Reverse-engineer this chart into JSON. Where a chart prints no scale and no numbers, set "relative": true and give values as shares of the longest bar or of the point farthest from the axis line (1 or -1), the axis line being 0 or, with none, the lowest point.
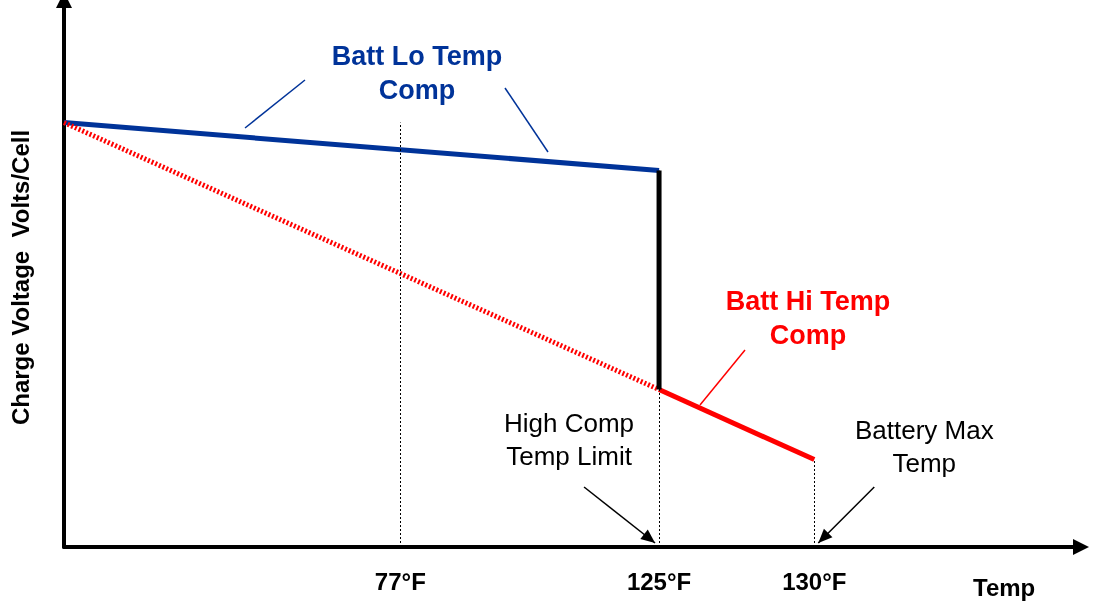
{
  "chart_data": {
    "type": "line",
    "relative": true,
    "xlabel": "Temp",
    "ylabel": "Charge Voltage  Volts/Cell",
    "categories": [
      null,
      null,
      null,
      null,
      null,
      null,
      null,
      null,
      null,
      null,
      null,
      null,
      null,
      "77°F",
      null,
      null,
      null,
      null,
      null,
      null,
      null,
      null,
      null,
      "125°F",
      null,
      null,
      null,
      null,
      null,
      "130°F",
      null,
      null,
      null,
      null,
      null,
      null,
      null,
      null,
      null,
      null
    ],
    "series": [
      {
        "name": "Batt Lo Temp Comp",
        "color": "#003399",
        "line_style": "solid",
        "values": [
          1,
          null,
          null,
          null,
          null,
          null,
          null,
          null,
          null,
          null,
          null,
          null,
          null,
          null,
          null,
          null,
          null,
          null,
          null,
          null,
          null,
          null,
          null,
          0.887,
          null,
          null,
          null,
          null,
          null,
          null,
          null,
          null,
          null,
          null,
          null,
          null,
          null,
          null,
          null,
          null
        ]
      },
      {
        "color": "#ff0000",
        "line_style": "dotted",
        "values": [
          1,
          null,
          null,
          null,
          null,
          null,
          null,
          null,
          null,
          null,
          null,
          null,
          null,
          null,
          null,
          null,
          null,
          null,
          null,
          null,
          null,
          null,
          null,
          0.371,
          null,
          null,
          null,
          null,
          null,
          null,
          null,
          null,
          null,
          null,
          null,
          null,
          null,
          null,
          null,
          null
        ]
      },
      {
        "name": "Batt Hi Temp Comp",
        "color": "#ff0000",
        "line_style": "solid",
        "values": [
          null,
          null,
          null,
          null,
          null,
          null,
          null,
          null,
          null,
          null,
          null,
          null,
          null,
          null,
          null,
          null,
          null,
          null,
          null,
          null,
          null,
          null,
          null,
          0.371,
          null,
          null,
          null,
          null,
          null,
          0.206,
          null,
          null,
          null,
          null,
          null,
          null,
          null,
          null,
          null,
          null
        ]
      },
      {
        "color": "#000000",
        "line_style": "solid",
        "x": [
          "125°F",
          "125°F"
        ],
        "values": [
          0.887,
          0.371
        ]
      }
    ],
    "ref_lines": [
      {
        "axis": "x",
        "value": "77°F",
        "color": "#000000",
        "line_style": "dotted"
      },
      {
        "axis": "x",
        "value": "125°F",
        "color": "#000000",
        "line_style": "dotted"
      },
      {
        "axis": "x",
        "value": "130°F",
        "color": "#000000",
        "line_style": "dotted"
      }
    ],
    "annotations": [
      "High Comp Temp Limit",
      "Battery Max Temp"
    ],
    "grid": false,
    "marker": "none"
  }
}
